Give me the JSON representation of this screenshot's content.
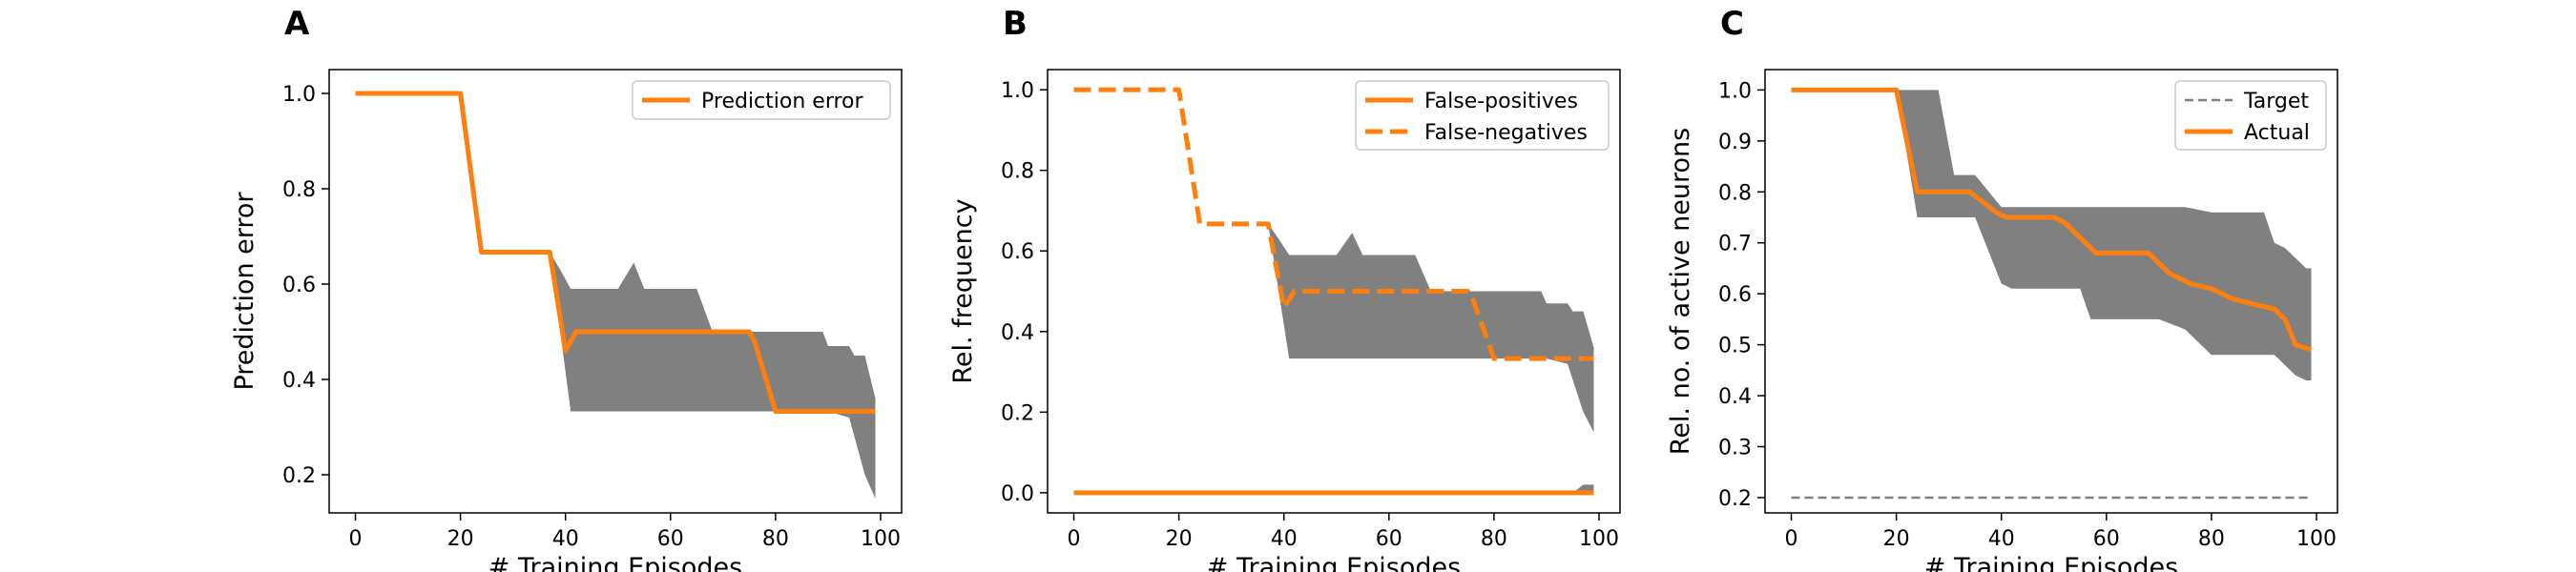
{
  "colors": {
    "accent": "#ff7f0e",
    "band": "#808080",
    "target": "#808080",
    "axes": "#000000",
    "legend_border": "#cccccc"
  },
  "chart_data": [
    {
      "type": "line",
      "panel_label": "A",
      "xlabel": "# Training Episodes",
      "ylabel": "Prediction error",
      "xlim": [
        -5,
        104
      ],
      "ylim": [
        0.12,
        1.05
      ],
      "xticks": [
        0,
        20,
        40,
        60,
        80,
        100
      ],
      "yticks": [
        0.2,
        0.4,
        0.6,
        0.8,
        1.0
      ],
      "xtick_labels": [
        "0",
        "20",
        "40",
        "60",
        "80",
        "100"
      ],
      "ytick_labels": [
        "0.2",
        "0.4",
        "0.6",
        "0.8",
        "1.0"
      ],
      "legend_position": "upper right",
      "legend_entries": [
        {
          "label": "Prediction error",
          "style": "solid"
        }
      ],
      "band": {
        "x": [
          37,
          39,
          41,
          50,
          53,
          55,
          65,
          68,
          78,
          89,
          90,
          94,
          95,
          97,
          99
        ],
        "upper": [
          0.667,
          0.63,
          0.59,
          0.59,
          0.645,
          0.59,
          0.59,
          0.5,
          0.5,
          0.5,
          0.47,
          0.47,
          0.45,
          0.45,
          0.36
        ],
        "lower": [
          0.667,
          0.5,
          0.333,
          0.333,
          0.333,
          0.333,
          0.333,
          0.333,
          0.333,
          0.333,
          0.333,
          0.32,
          0.28,
          0.2,
          0.15
        ]
      },
      "series": [
        {
          "name": "Prediction error",
          "style": "solid",
          "x": [
            0,
            20,
            24,
            37,
            40,
            42,
            75,
            76,
            80,
            99
          ],
          "y": [
            1.0,
            1.0,
            0.667,
            0.667,
            0.46,
            0.5,
            0.5,
            0.48,
            0.333,
            0.333
          ]
        }
      ]
    },
    {
      "type": "line",
      "panel_label": "B",
      "xlabel": "# Training Episodes",
      "ylabel": "Rel. frequency",
      "xlim": [
        -5,
        104
      ],
      "ylim": [
        -0.05,
        1.05
      ],
      "xticks": [
        0,
        20,
        40,
        60,
        80,
        100
      ],
      "yticks": [
        0.0,
        0.2,
        0.4,
        0.6,
        0.8,
        1.0
      ],
      "xtick_labels": [
        "0",
        "20",
        "40",
        "60",
        "80",
        "100"
      ],
      "ytick_labels": [
        "0.0",
        "0.2",
        "0.4",
        "0.6",
        "0.8",
        "1.0"
      ],
      "legend_position": "upper right",
      "legend_entries": [
        {
          "label": "False-positives",
          "style": "solid"
        },
        {
          "label": "False-negatives",
          "style": "dashed"
        }
      ],
      "band": {
        "x": [
          37,
          39,
          41,
          50,
          53,
          55,
          65,
          68,
          78,
          89,
          90,
          94,
          95,
          97,
          99
        ],
        "upper": [
          0.667,
          0.63,
          0.59,
          0.59,
          0.645,
          0.59,
          0.59,
          0.5,
          0.5,
          0.5,
          0.47,
          0.47,
          0.45,
          0.45,
          0.36
        ],
        "lower": [
          0.667,
          0.5,
          0.333,
          0.333,
          0.333,
          0.333,
          0.333,
          0.333,
          0.333,
          0.333,
          0.333,
          0.32,
          0.28,
          0.2,
          0.15
        ]
      },
      "band2": {
        "x": [
          95,
          97,
          99
        ],
        "upper": [
          0.0,
          0.02,
          0.02
        ],
        "lower": [
          0.0,
          0.0,
          0.0
        ]
      },
      "series": [
        {
          "name": "False-positives",
          "style": "solid",
          "x": [
            0,
            99
          ],
          "y": [
            0.0,
            0.0
          ]
        },
        {
          "name": "False-negatives",
          "style": "dashed",
          "x": [
            0,
            20,
            24,
            37,
            40,
            42,
            75,
            76,
            80,
            99
          ],
          "y": [
            1.0,
            1.0,
            0.667,
            0.667,
            0.46,
            0.5,
            0.5,
            0.48,
            0.333,
            0.333
          ]
        }
      ]
    },
    {
      "type": "line",
      "panel_label": "C",
      "xlabel": "# Training Episodes",
      "ylabel": "Rel. no. of active neurons",
      "xlim": [
        -5,
        104
      ],
      "ylim": [
        0.17,
        1.04
      ],
      "xticks": [
        0,
        20,
        40,
        60,
        80,
        100
      ],
      "yticks": [
        0.2,
        0.3,
        0.4,
        0.5,
        0.6,
        0.7,
        0.8,
        0.9,
        1.0
      ],
      "xtick_labels": [
        "0",
        "20",
        "40",
        "60",
        "80",
        "100"
      ],
      "ytick_labels": [
        "0.2",
        "0.3",
        "0.4",
        "0.5",
        "0.6",
        "0.7",
        "0.8",
        "0.9",
        "1.0"
      ],
      "legend_position": "upper right",
      "legend_entries": [
        {
          "label": "Target",
          "style": "target"
        },
        {
          "label": "Actual",
          "style": "solid"
        }
      ],
      "band": {
        "x": [
          20,
          24,
          28,
          31,
          35,
          40,
          42,
          55,
          57,
          70,
          75,
          80,
          83,
          86,
          88,
          90,
          92,
          94,
          96,
          98,
          99
        ],
        "upper": [
          1.0,
          1.0,
          1.0,
          0.833,
          0.833,
          0.77,
          0.77,
          0.77,
          0.77,
          0.77,
          0.77,
          0.76,
          0.76,
          0.76,
          0.76,
          0.76,
          0.7,
          0.69,
          0.67,
          0.65,
          0.65
        ],
        "lower": [
          1.0,
          0.75,
          0.75,
          0.75,
          0.75,
          0.62,
          0.61,
          0.61,
          0.55,
          0.55,
          0.53,
          0.48,
          0.48,
          0.48,
          0.48,
          0.48,
          0.48,
          0.46,
          0.44,
          0.43,
          0.43
        ]
      },
      "series": [
        {
          "name": "Target",
          "style": "target",
          "x": [
            0,
            99
          ],
          "y": [
            0.2,
            0.2
          ]
        },
        {
          "name": "Actual",
          "style": "solid",
          "x": [
            0,
            20,
            24,
            34,
            39,
            41,
            50,
            52,
            58,
            68,
            72,
            76,
            80,
            84,
            88,
            92,
            94,
            96,
            99
          ],
          "y": [
            1.0,
            1.0,
            0.8,
            0.8,
            0.76,
            0.75,
            0.75,
            0.74,
            0.68,
            0.68,
            0.64,
            0.62,
            0.61,
            0.59,
            0.58,
            0.57,
            0.55,
            0.5,
            0.49
          ]
        }
      ]
    }
  ]
}
